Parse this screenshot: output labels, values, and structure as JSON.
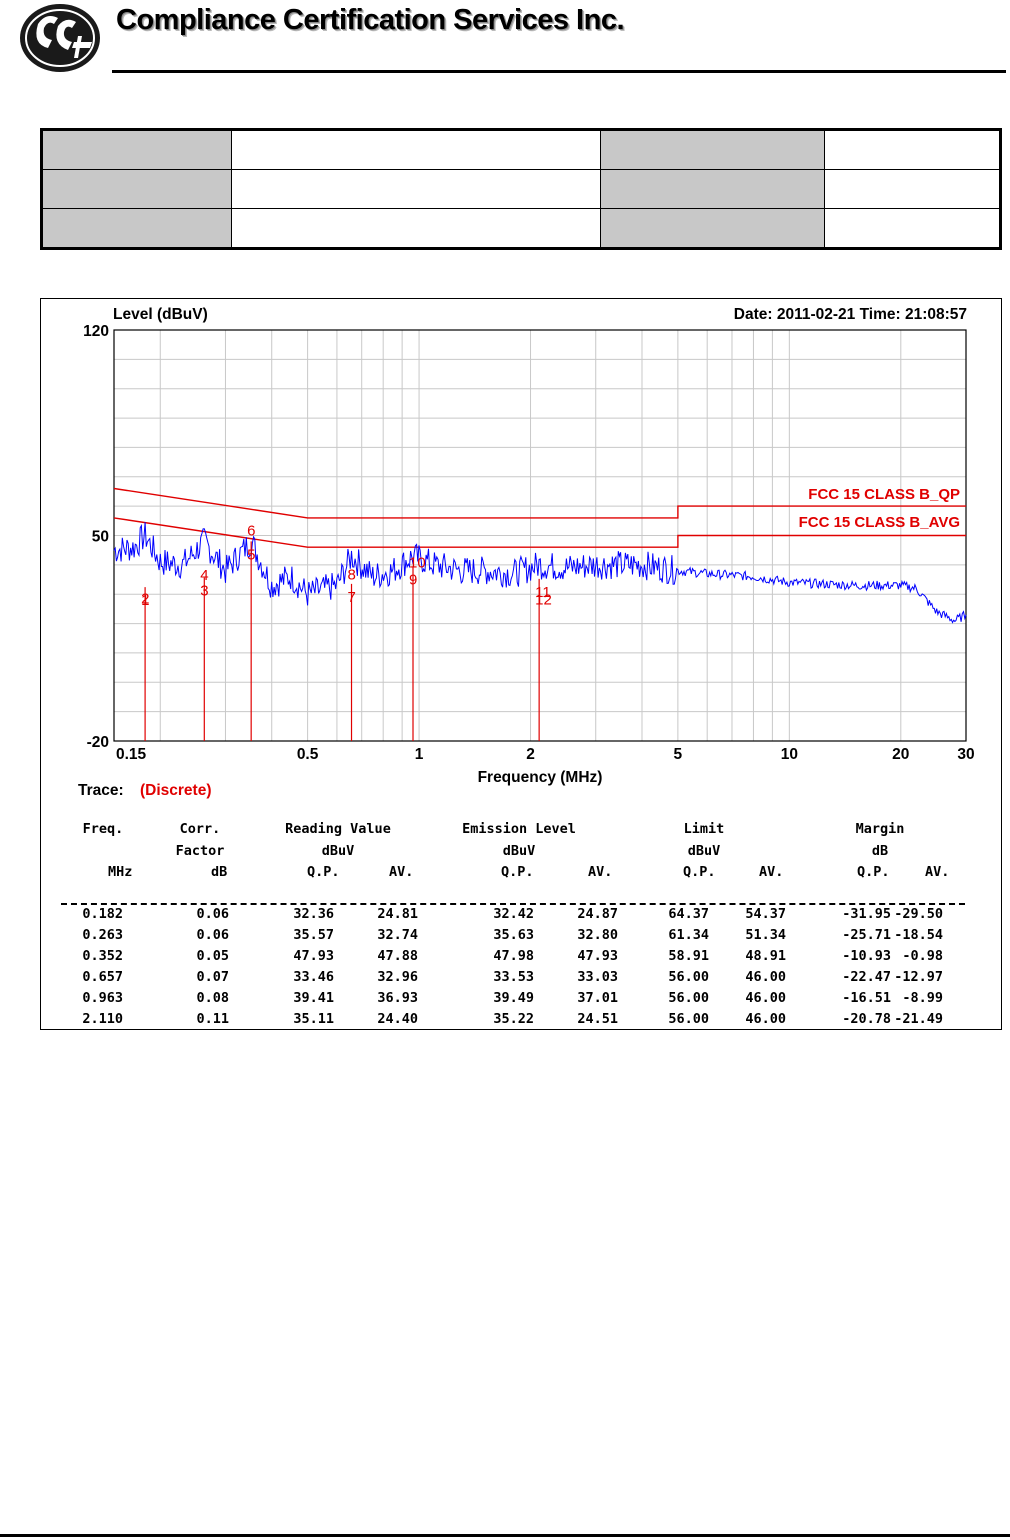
{
  "header": {
    "company": "Compliance Certification Services Inc."
  },
  "chart": {
    "ylabel": "Level (dBuV)",
    "date_time": "Date: 2011-02-21  Time: 21:08:57",
    "xlabel": "Frequency (MHz)",
    "trace_label": "Trace:",
    "trace_value": "(Discrete)",
    "limit_qp_label": "FCC 15 CLASS B_QP",
    "limit_avg_label": "FCC 15 CLASS B_AVG"
  },
  "chart_data": {
    "type": "line",
    "title": "",
    "xlabel": "Frequency (MHz)",
    "ylabel": "Level (dBuV)",
    "x_scale": "log",
    "xlim": [
      0.15,
      30
    ],
    "ylim": [
      -20,
      120
    ],
    "x_ticks": [
      "0.15",
      "0.5",
      "1",
      "2",
      "5",
      "10",
      "20",
      "30"
    ],
    "y_ticks": [
      "120",
      "50",
      "-20"
    ],
    "grid": true,
    "series": [
      {
        "name": "FCC 15 CLASS B_QP",
        "color": "#e00000",
        "x": [
          0.15,
          0.5,
          0.5,
          5,
          5,
          30
        ],
        "y": [
          66,
          56,
          56,
          56,
          60,
          60
        ]
      },
      {
        "name": "FCC 15 CLASS B_AVG",
        "color": "#e00000",
        "x": [
          0.15,
          0.5,
          0.5,
          5,
          5,
          30
        ],
        "y": [
          56,
          46,
          46,
          46,
          50,
          50
        ]
      },
      {
        "name": "",
        "color": "#0000ff",
        "x": [
          0.15,
          0.17,
          0.182,
          0.2,
          0.23,
          0.263,
          0.3,
          0.352,
          0.4,
          0.45,
          0.5,
          0.6,
          0.657,
          0.75,
          0.85,
          0.963,
          1.1,
          1.3,
          1.5,
          1.8,
          2.11,
          2.5,
          3,
          4,
          5,
          6,
          8,
          10,
          15,
          20,
          22,
          25,
          28,
          30
        ],
        "y": [
          45,
          46,
          50,
          41,
          40,
          48,
          38,
          48,
          33,
          36,
          30,
          33,
          43,
          36,
          38,
          43,
          40,
          38,
          38,
          37,
          40,
          39,
          40,
          40,
          38,
          37,
          36,
          34,
          33,
          33,
          32,
          24,
          21,
          23
        ]
      }
    ],
    "markers": [
      {
        "label": "1",
        "x": 0.182,
        "y": 32.42
      },
      {
        "label": "2",
        "x": 0.182,
        "y": 24.87
      },
      {
        "label": "3",
        "x": 0.263,
        "y": 35.63
      },
      {
        "label": "4",
        "x": 0.263,
        "y": 32.8
      },
      {
        "label": "5",
        "x": 0.352,
        "y": 47.98
      },
      {
        "label": "6",
        "x": 0.352,
        "y": 47.93
      },
      {
        "label": "7",
        "x": 0.657,
        "y": 33.53
      },
      {
        "label": "8",
        "x": 0.657,
        "y": 33.03
      },
      {
        "label": "9",
        "x": 0.963,
        "y": 39.49
      },
      {
        "label": "10",
        "x": 0.963,
        "y": 37.01
      },
      {
        "label": "11",
        "x": 2.11,
        "y": 35.22
      },
      {
        "label": "12",
        "x": 2.11,
        "y": 24.51
      }
    ]
  },
  "table": {
    "h1": [
      "Freq.",
      "Corr.",
      "Reading Value",
      "Emission Level",
      "Limit",
      "Margin"
    ],
    "h2": [
      "",
      "Factor",
      "dBuV",
      "dBuV",
      "dBuV",
      "dB"
    ],
    "h3": [
      "MHz",
      "dB",
      "Q.P.",
      "AV.",
      "Q.P.",
      "AV.",
      "Q.P.",
      "AV.",
      "Q.P.",
      "AV."
    ],
    "rows": [
      [
        "0.182",
        "0.06",
        "32.36",
        "24.81",
        "32.42",
        "24.87",
        "64.37",
        "54.37",
        "-31.95",
        "-29.50"
      ],
      [
        "0.263",
        "0.06",
        "35.57",
        "32.74",
        "35.63",
        "32.80",
        "61.34",
        "51.34",
        "-25.71",
        "-18.54"
      ],
      [
        "0.352",
        "0.05",
        "47.93",
        "47.88",
        "47.98",
        "47.93",
        "58.91",
        "48.91",
        "-10.93",
        "-0.98"
      ],
      [
        "0.657",
        "0.07",
        "33.46",
        "32.96",
        "33.53",
        "33.03",
        "56.00",
        "46.00",
        "-22.47",
        "-12.97"
      ],
      [
        "0.963",
        "0.08",
        "39.41",
        "36.93",
        "39.49",
        "37.01",
        "56.00",
        "46.00",
        "-16.51",
        "-8.99"
      ],
      [
        "2.110",
        "0.11",
        "35.11",
        "24.40",
        "35.22",
        "24.51",
        "56.00",
        "46.00",
        "-20.78",
        "-21.49"
      ]
    ]
  }
}
